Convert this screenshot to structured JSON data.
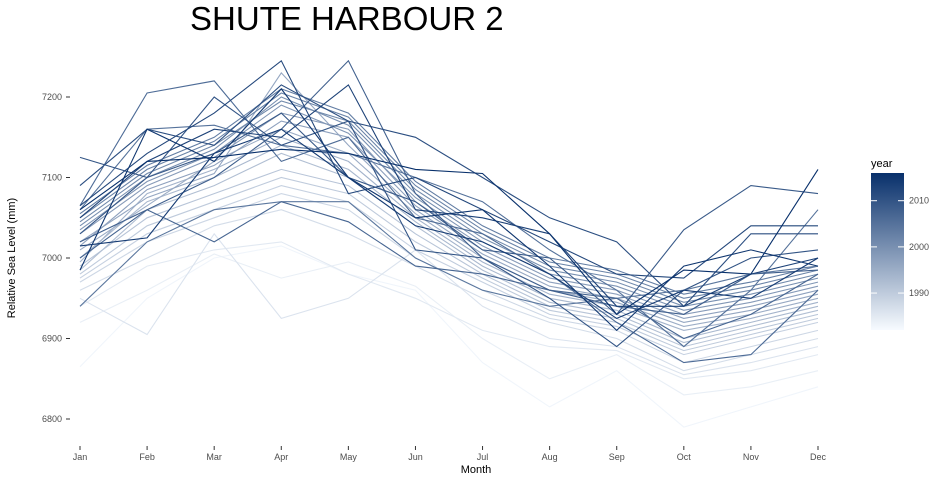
{
  "chart_data": {
    "type": "line",
    "title": "SHUTE HARBOUR 2",
    "xlabel": "Month",
    "ylabel": "Relative Sea Level (mm)",
    "categories": [
      "Jan",
      "Feb",
      "Mar",
      "Apr",
      "May",
      "Jun",
      "Jul",
      "Aug",
      "Sep",
      "Oct",
      "Nov",
      "Dec"
    ],
    "y_ticks": [
      6800,
      6900,
      7000,
      7100,
      7200
    ],
    "y_tick_labels": [
      "6800",
      "6900",
      "7000",
      "7100",
      "7200"
    ],
    "ylim": [
      6780,
      7250
    ],
    "grid": false,
    "legend": {
      "title": "year",
      "placement": "right",
      "range": [
        1982,
        2016
      ],
      "ticks": [
        1990,
        2000,
        2010
      ],
      "tick_labels": [
        "1990",
        "2000",
        "2010"
      ],
      "color_low": "#f7fbff",
      "color_high": "#08306b"
    },
    "color_encoding": "year",
    "series": [
      {
        "year": 1983,
        "values": [
          6865,
          6950,
          7000,
          7015,
          6980,
          6960,
          6870,
          6815,
          6860,
          6790,
          6815,
          6840
        ]
      },
      {
        "year": 1984,
        "values": [
          6920,
          6960,
          7005,
          6975,
          6995,
          6965,
          6900,
          6850,
          6880,
          6830,
          6840,
          6860
        ]
      },
      {
        "year": 1985,
        "values": [
          6940,
          6990,
          7010,
          7020,
          6980,
          6950,
          6910,
          6890,
          6885,
          6850,
          6860,
          6880
        ]
      },
      {
        "year": 1986,
        "values": [
          6950,
          6905,
          7030,
          6925,
          6950,
          7010,
          6940,
          6900,
          6890,
          6855,
          6870,
          6890
        ]
      },
      {
        "year": 1987,
        "values": [
          6960,
          7000,
          7040,
          7060,
          7030,
          6990,
          6950,
          6920,
          6900,
          6860,
          6880,
          6900
        ]
      },
      {
        "year": 1988,
        "values": [
          6970,
          7020,
          7050,
          7080,
          7060,
          7000,
          6960,
          6925,
          6910,
          6870,
          6890,
          6910
        ]
      },
      {
        "year": 1989,
        "values": [
          6975,
          7030,
          7060,
          7090,
          7070,
          7010,
          6970,
          6930,
          6915,
          6880,
          6900,
          6920
        ]
      },
      {
        "year": 1990,
        "values": [
          6980,
          7040,
          7070,
          7100,
          7080,
          7020,
          6975,
          6935,
          6920,
          6885,
          6905,
          6925
        ]
      },
      {
        "year": 1991,
        "values": [
          6990,
          7050,
          7080,
          7110,
          7090,
          7030,
          6980,
          6940,
          6925,
          6890,
          6910,
          6930
        ]
      },
      {
        "year": 1992,
        "values": [
          6985,
          7060,
          7090,
          7130,
          7100,
          7040,
          6985,
          6945,
          6930,
          6895,
          6915,
          6935
        ]
      },
      {
        "year": 1993,
        "values": [
          7000,
          7070,
          7100,
          7140,
          7110,
          7045,
          6990,
          6950,
          6935,
          6900,
          6920,
          6940
        ]
      },
      {
        "year": 1994,
        "values": [
          6995,
          7080,
          7110,
          7150,
          7120,
          7050,
          6995,
          6955,
          6940,
          6910,
          6925,
          6945
        ]
      },
      {
        "year": 1995,
        "values": [
          7010,
          7065,
          7120,
          7160,
          7130,
          7055,
          7000,
          6960,
          6945,
          6915,
          6930,
          6950
        ]
      },
      {
        "year": 1996,
        "values": [
          7020,
          7075,
          7105,
          7230,
          7140,
          7060,
          7005,
          6965,
          6950,
          6920,
          6935,
          6955
        ]
      },
      {
        "year": 1997,
        "values": [
          7015,
          7085,
          7115,
          7170,
          7150,
          7065,
          7010,
          6970,
          6955,
          6925,
          6940,
          6960
        ]
      },
      {
        "year": 1998,
        "values": [
          7030,
          7090,
          7125,
          7180,
          7160,
          7070,
          7015,
          6975,
          6960,
          6930,
          6945,
          6965
        ]
      },
      {
        "year": 1999,
        "values": [
          7035,
          7095,
          7130,
          7190,
          7155,
          7075,
          7020,
          6980,
          6965,
          6935,
          6950,
          6970
        ]
      },
      {
        "year": 2000,
        "values": [
          7040,
          7100,
          7135,
          7200,
          7165,
          7080,
          7025,
          6985,
          6970,
          6940,
          6955,
          6975
        ]
      },
      {
        "year": 2001,
        "values": [
          7045,
          7105,
          7140,
          7195,
          7170,
          7085,
          7030,
          6990,
          6975,
          6945,
          6960,
          6980
        ]
      },
      {
        "year": 2002,
        "values": [
          7050,
          7110,
          7145,
          7205,
          7175,
          7090,
          7035,
          6995,
          6980,
          6950,
          6965,
          6985
        ]
      },
      {
        "year": 2003,
        "values": [
          7055,
          7115,
          7150,
          7210,
          7180,
          7095,
          7040,
          7000,
          6985,
          6955,
          6970,
          6990
        ]
      },
      {
        "year": 2004,
        "values": [
          6940,
          7020,
          7060,
          7070,
          7070,
          7000,
          6960,
          6940,
          6950,
          6960,
          6980,
          6990
        ]
      },
      {
        "year": 2005,
        "values": [
          7060,
          7160,
          7165,
          7140,
          7130,
          7100,
          7070,
          7010,
          6960,
          6890,
          6960,
          7060
        ]
      },
      {
        "year": 2006,
        "values": [
          7065,
          7205,
          7220,
          7120,
          7150,
          7050,
          7030,
          6980,
          6920,
          6870,
          6880,
          6960
        ]
      },
      {
        "year": 2007,
        "values": [
          7000,
          7060,
          7020,
          7070,
          7045,
          6990,
          6980,
          6960,
          6950,
          6900,
          6930,
          6980
        ]
      },
      {
        "year": 2008,
        "values": [
          7020,
          7060,
          7100,
          7160,
          7245,
          7080,
          7000,
          6960,
          6940,
          6930,
          6980,
          6985
        ]
      },
      {
        "year": 2009,
        "values": [
          7030,
          7100,
          7130,
          7180,
          7100,
          7070,
          7010,
          7000,
          6930,
          7035,
          7090,
          7080
        ]
      },
      {
        "year": 2010,
        "values": [
          7125,
          7100,
          7200,
          7140,
          7170,
          7010,
          7000,
          6950,
          6890,
          6960,
          7000,
          7010
        ]
      },
      {
        "year": 2011,
        "values": [
          7090,
          7160,
          7140,
          7215,
          7170,
          7150,
          7100,
          7050,
          7020,
          6940,
          7030,
          7030
        ]
      },
      {
        "year": 2012,
        "values": [
          7065,
          7130,
          7180,
          7245,
          7080,
          7100,
          7060,
          7020,
          6980,
          6975,
          7040,
          7040
        ]
      },
      {
        "year": 2013,
        "values": [
          7050,
          7120,
          7160,
          7150,
          7215,
          7060,
          7050,
          7030,
          6940,
          6940,
          6980,
          7000
        ]
      },
      {
        "year": 2014,
        "values": [
          7015,
          7025,
          7130,
          7160,
          7100,
          7040,
          7020,
          6980,
          6925,
          6960,
          6950,
          7000
        ]
      },
      {
        "year": 2015,
        "values": [
          6985,
          7160,
          7120,
          7210,
          7100,
          7050,
          7060,
          6990,
          6910,
          6990,
          7010,
          6990
        ]
      },
      {
        "year": 2016,
        "values": [
          7060,
          7120,
          7125,
          7135,
          7130,
          7110,
          7105,
          7030,
          6930,
          6985,
          6980,
          7110
        ]
      }
    ]
  }
}
